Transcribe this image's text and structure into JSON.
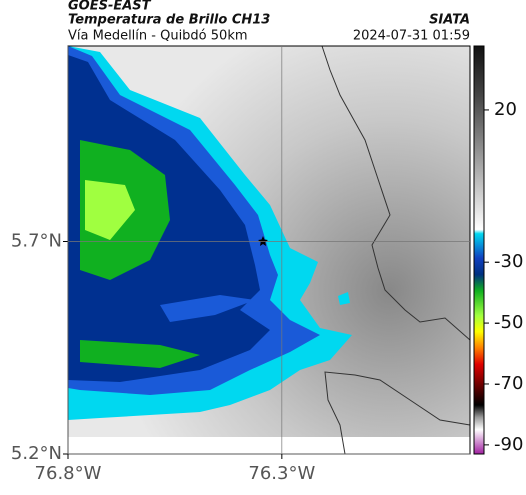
{
  "header": {
    "satellite": "GOES-EAST",
    "title": "Temperatura de Brillo CH13",
    "source": "SIATA",
    "subtitle": "Vía Medellín - Quibdó 50km",
    "datetime": "2024-07-31 01:59"
  },
  "map": {
    "lonlim": [
      -76.8,
      -75.86
    ],
    "latlim": [
      5.2,
      6.16
    ],
    "lat_ticks": [
      {
        "value": 5.7,
        "label": "5.7°N"
      },
      {
        "value": 5.2,
        "label": "5.2°N"
      }
    ],
    "lon_ticks": [
      {
        "value": -76.8,
        "label": "76.8°W"
      },
      {
        "value": -76.3,
        "label": "76.3°W"
      }
    ],
    "colorbar": {
      "lim": [
        -93,
        41
      ],
      "ticks": [
        20,
        -30,
        -50,
        -70,
        -90
      ]
    }
  }
}
